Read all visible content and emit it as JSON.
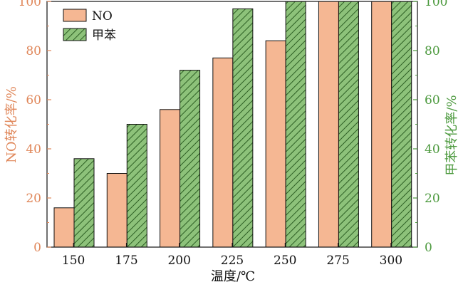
{
  "chart_data": {
    "type": "bar",
    "categories": [
      "150",
      "175",
      "200",
      "225",
      "250",
      "275",
      "300"
    ],
    "series": [
      {
        "name": "NO",
        "values": [
          16,
          30,
          56,
          77,
          84,
          100,
          100
        ],
        "color": "#f5b793",
        "axis": "left"
      },
      {
        "name": "甲苯",
        "values": [
          36,
          50,
          72,
          97,
          100,
          100,
          100
        ],
        "color": "#8dc27a",
        "axis": "right",
        "pattern": "diagonal-hatch"
      }
    ],
    "xlabel": "温度/℃",
    "ylabel_left": "NO转化率/%",
    "ylabel_right": "甲苯转化率/%",
    "ylim": [
      0,
      100
    ],
    "yticks": [
      "0",
      "20",
      "40",
      "60",
      "80",
      "100"
    ],
    "left_axis_color": "#e0875a",
    "right_axis_color": "#4d9a3f",
    "legend_position": "top-left",
    "grid": false
  }
}
